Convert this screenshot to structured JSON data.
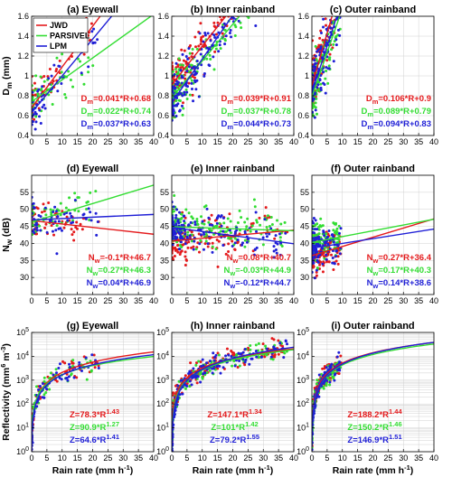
{
  "colors": {
    "JWD": "#e41a1c",
    "PARSIVEL": "#33dd33",
    "LPM": "#1f1fd6"
  },
  "legend": {
    "placement": "top-left",
    "entries": [
      "JWD",
      "PARSIVEL",
      "LPM"
    ]
  },
  "chart_data": [
    {
      "id": "a",
      "type": "scatter",
      "title": "(a) Eyewall",
      "ylabel": "D",
      "ylabel_sub": "m",
      "ylabel_unit": " (mm)",
      "xlim": [
        0,
        40
      ],
      "ylim": [
        0.4,
        1.6
      ],
      "xticks": [
        "0",
        "5",
        "10",
        "15",
        "20",
        "25",
        "30",
        "35",
        "40"
      ],
      "yticks": [
        "0.4",
        "0.6",
        "0.8",
        "1",
        "1.2",
        "1.4",
        "1.6"
      ],
      "yscale": "linear",
      "legend": true,
      "fits": [
        {
          "series": "JWD",
          "a": 0.041,
          "b": 0.68,
          "pre": "D",
          "sub": "m",
          "post": "=0.041*R+0.68"
        },
        {
          "series": "PARSIVEL",
          "a": 0.022,
          "b": 0.74,
          "pre": "D",
          "sub": "m",
          "post": "=0.022*R+0.74"
        },
        {
          "series": "LPM",
          "a": 0.037,
          "b": 0.63,
          "pre": "D",
          "sub": "m",
          "post": "=0.037*R+0.63"
        }
      ]
    },
    {
      "id": "b",
      "type": "scatter",
      "title": "(b) Inner rainband",
      "xlim": [
        0,
        40
      ],
      "ylim": [
        0.4,
        1.6
      ],
      "xticks": [
        "0",
        "5",
        "10",
        "15",
        "20",
        "25",
        "30",
        "35",
        "40"
      ],
      "yticks": [
        "0.4",
        "0.6",
        "0.8",
        "1",
        "1.2",
        "1.4",
        "1.6"
      ],
      "yscale": "linear",
      "fits": [
        {
          "series": "JWD",
          "a": 0.039,
          "b": 0.91,
          "pre": "D",
          "sub": "m",
          "post": "=0.039*R+0.91"
        },
        {
          "series": "PARSIVEL",
          "a": 0.037,
          "b": 0.78,
          "pre": "D",
          "sub": "m",
          "post": "=0.037*R+0.78"
        },
        {
          "series": "LPM",
          "a": 0.044,
          "b": 0.73,
          "pre": "D",
          "sub": "m",
          "post": "=0.044*R+0.73"
        }
      ]
    },
    {
      "id": "c",
      "type": "scatter",
      "title": "(c) Outer rainband",
      "xlim": [
        0,
        40
      ],
      "ylim": [
        0.4,
        1.6
      ],
      "xticks": [
        "0",
        "5",
        "10",
        "15",
        "20",
        "25",
        "30",
        "35",
        "40"
      ],
      "yticks": [
        "0.4",
        "0.6",
        "0.8",
        "1",
        "1.2",
        "1.4",
        "1.6"
      ],
      "yscale": "linear",
      "fits": [
        {
          "series": "JWD",
          "a": 0.106,
          "b": 0.9,
          "pre": "D",
          "sub": "m",
          "post": "=0.106*R+0.9"
        },
        {
          "series": "PARSIVEL",
          "a": 0.089,
          "b": 0.79,
          "pre": "D",
          "sub": "m",
          "post": "=0.089*R+0.79"
        },
        {
          "series": "LPM",
          "a": 0.094,
          "b": 0.83,
          "pre": "D",
          "sub": "m",
          "post": "=0.094*R+0.83"
        }
      ]
    },
    {
      "id": "d",
      "type": "scatter",
      "title": "(d) Eyewall",
      "ylabel": "N",
      "ylabel_sub": "w",
      "ylabel_unit": " (dB)",
      "xlim": [
        0,
        40
      ],
      "ylim": [
        25,
        60
      ],
      "xticks": [
        "0",
        "5",
        "10",
        "15",
        "20",
        "25",
        "30",
        "35",
        "40"
      ],
      "yticks": [
        "30",
        "35",
        "40",
        "45",
        "50",
        "55"
      ],
      "yscale": "linear",
      "fits": [
        {
          "series": "JWD",
          "a": -0.1,
          "b": 46.7,
          "pre": "N",
          "sub": "w",
          "post": "=-0.1*R+46.7"
        },
        {
          "series": "PARSIVEL",
          "a": 0.27,
          "b": 46.3,
          "pre": "N",
          "sub": "w",
          "post": "=0.27*R+46.3"
        },
        {
          "series": "LPM",
          "a": 0.04,
          "b": 46.9,
          "pre": "N",
          "sub": "w",
          "post": "=0.04*R+46.9"
        }
      ]
    },
    {
      "id": "e",
      "type": "scatter",
      "title": "(e) Inner rainband",
      "xlim": [
        0,
        40
      ],
      "ylim": [
        25,
        60
      ],
      "xticks": [
        "0",
        "5",
        "10",
        "15",
        "20",
        "25",
        "30",
        "35",
        "40"
      ],
      "yticks": [
        "30",
        "35",
        "40",
        "45",
        "50",
        "55"
      ],
      "yscale": "linear",
      "fits": [
        {
          "series": "JWD",
          "a": 0.08,
          "b": 40.7,
          "pre": "N",
          "sub": "w",
          "post": "=0.08*R+40.7"
        },
        {
          "series": "PARSIVEL",
          "a": -0.03,
          "b": 44.9,
          "pre": "N",
          "sub": "w",
          "post": "=-0.03*R+44.9"
        },
        {
          "series": "LPM",
          "a": -0.12,
          "b": 44.7,
          "pre": "N",
          "sub": "w",
          "post": "=-0.12*R+44.7"
        }
      ]
    },
    {
      "id": "f",
      "type": "scatter",
      "title": "(f) Outer rainband",
      "xlim": [
        0,
        40
      ],
      "ylim": [
        25,
        60
      ],
      "xticks": [
        "0",
        "5",
        "10",
        "15",
        "20",
        "25",
        "30",
        "35",
        "40"
      ],
      "yticks": [
        "30",
        "35",
        "40",
        "45",
        "50",
        "55"
      ],
      "yscale": "linear",
      "fits": [
        {
          "series": "JWD",
          "a": 0.27,
          "b": 36.4,
          "pre": "N",
          "sub": "w",
          "post": "=0.27*R+36.4"
        },
        {
          "series": "PARSIVEL",
          "a": 0.17,
          "b": 40.3,
          "pre": "N",
          "sub": "w",
          "post": "=0.17*R+40.3"
        },
        {
          "series": "LPM",
          "a": 0.14,
          "b": 38.6,
          "pre": "N",
          "sub": "w",
          "post": "=0.14*R+38.6"
        }
      ]
    },
    {
      "id": "g",
      "type": "scatter",
      "title": "(g) Eyewall",
      "ylabel": "Reflectivity (mm",
      "ylabel_sup": "6",
      "ylabel_mid": " m",
      "ylabel_sup2": "-3",
      "ylabel_end": ")",
      "xlabel": "Rain rate (mm h",
      "xlabel_sup": "-1",
      "xlabel_end": ")",
      "xlim": [
        0,
        40
      ],
      "ylim_exp": [
        0,
        5
      ],
      "xticks": [
        "0",
        "5",
        "10",
        "15",
        "20",
        "25",
        "30",
        "35",
        "40"
      ],
      "yticks_exp": [
        "0",
        "1",
        "2",
        "3",
        "4",
        "5"
      ],
      "yscale": "log",
      "fits": [
        {
          "series": "JWD",
          "a": 78.3,
          "b": 1.43,
          "pre": "Z=78.3*R",
          "sup": "1.43"
        },
        {
          "series": "PARSIVEL",
          "a": 90.9,
          "b": 1.27,
          "pre": "Z=90.9*R",
          "sup": "1.27"
        },
        {
          "series": "LPM",
          "a": 64.6,
          "b": 1.41,
          "pre": "Z=64.6*R",
          "sup": "1.41"
        }
      ]
    },
    {
      "id": "h",
      "type": "scatter",
      "title": "(h) Inner rainband",
      "xlabel": "Rain rate (mm h",
      "xlabel_sup": "-1",
      "xlabel_end": ")",
      "xlim": [
        0,
        40
      ],
      "ylim_exp": [
        0,
        5
      ],
      "xticks": [
        "0",
        "5",
        "10",
        "15",
        "20",
        "25",
        "30",
        "35",
        "40"
      ],
      "yticks_exp": [
        "0",
        "1",
        "2",
        "3",
        "4",
        "5"
      ],
      "yscale": "log",
      "fits": [
        {
          "series": "JWD",
          "a": 147.1,
          "b": 1.34,
          "pre": "Z=147.1*R",
          "sup": "1.34"
        },
        {
          "series": "PARSIVEL",
          "a": 101,
          "b": 1.42,
          "pre": "Z=101*R",
          "sup": "1.42"
        },
        {
          "series": "LPM",
          "a": 79.2,
          "b": 1.55,
          "pre": "Z=79.2*R",
          "sup": "1.55"
        }
      ]
    },
    {
      "id": "i",
      "type": "scatter",
      "title": "(i) Outer rainband",
      "xlabel": "Rain rate (mm h",
      "xlabel_sup": "-1",
      "xlabel_end": ")",
      "xlim": [
        0,
        40
      ],
      "ylim_exp": [
        0,
        5
      ],
      "xticks": [
        "0",
        "5",
        "10",
        "15",
        "20",
        "25",
        "30",
        "35",
        "40"
      ],
      "yticks_exp": [
        "0",
        "1",
        "2",
        "3",
        "4",
        "5"
      ],
      "yscale": "log",
      "fits": [
        {
          "series": "JWD",
          "a": 188.2,
          "b": 1.44,
          "pre": "Z=188.2*R",
          "sup": "1.44"
        },
        {
          "series": "PARSIVEL",
          "a": 150.2,
          "b": 1.46,
          "pre": "Z=150.2*R",
          "sup": "1.46"
        },
        {
          "series": "LPM",
          "a": 146.9,
          "b": 1.51,
          "pre": "Z=146.9*R",
          "sup": "1.51"
        }
      ]
    }
  ]
}
